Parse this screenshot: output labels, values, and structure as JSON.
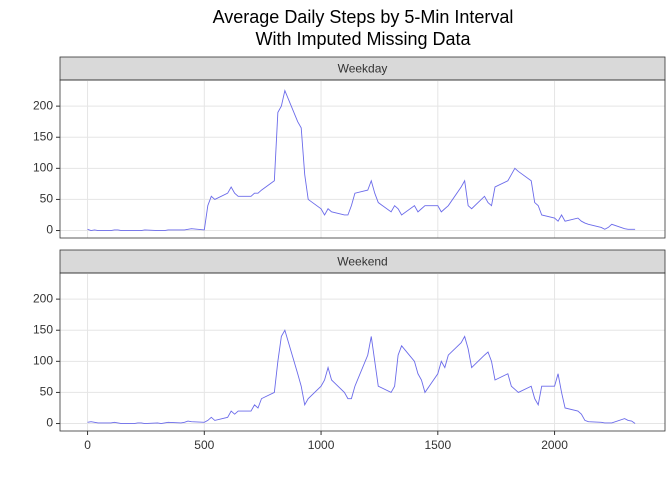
{
  "chart_data": {
    "type": "line",
    "layout": "facet",
    "title": [
      "Average Daily Steps by 5-Min Interval",
      "With Imputed Missing Data"
    ],
    "x": [
      0,
      15,
      30,
      45,
      100,
      115,
      130,
      145,
      200,
      215,
      230,
      245,
      300,
      315,
      330,
      345,
      400,
      415,
      430,
      445,
      500,
      515,
      530,
      545,
      600,
      615,
      630,
      645,
      700,
      715,
      730,
      745,
      800,
      815,
      830,
      845,
      900,
      915,
      930,
      945,
      1000,
      1015,
      1030,
      1045,
      1100,
      1115,
      1130,
      1145,
      1200,
      1215,
      1230,
      1245,
      1300,
      1315,
      1330,
      1345,
      1400,
      1415,
      1430,
      1445,
      1500,
      1515,
      1530,
      1545,
      1600,
      1615,
      1630,
      1645,
      1700,
      1715,
      1730,
      1745,
      1800,
      1815,
      1830,
      1845,
      1900,
      1915,
      1930,
      1945,
      2000,
      2015,
      2030,
      2045,
      2100,
      2115,
      2130,
      2145,
      2200,
      2215,
      2230,
      2245,
      2300,
      2315,
      2330,
      2345
    ],
    "series": [
      {
        "name": "Weekday",
        "color": "#6b6bea",
        "values": [
          2,
          0,
          1,
          0,
          0,
          1,
          1,
          0,
          0,
          0,
          0,
          1,
          0,
          0,
          0,
          1,
          1,
          1,
          2,
          3,
          1,
          40,
          55,
          50,
          60,
          70,
          60,
          55,
          55,
          60,
          60,
          65,
          80,
          190,
          200,
          225,
          175,
          165,
          90,
          50,
          35,
          25,
          35,
          30,
          25,
          25,
          40,
          60,
          65,
          80,
          60,
          45,
          30,
          40,
          35,
          25,
          40,
          30,
          35,
          40,
          40,
          30,
          35,
          40,
          70,
          80,
          40,
          35,
          55,
          45,
          40,
          70,
          80,
          90,
          100,
          95,
          80,
          45,
          40,
          25,
          20,
          15,
          25,
          15,
          20,
          15,
          12,
          10,
          5,
          2,
          5,
          10,
          3,
          2,
          2,
          2
        ]
      },
      {
        "name": "Weekend",
        "color": "#6b6bea",
        "values": [
          2,
          3,
          2,
          1,
          1,
          2,
          1,
          0,
          0,
          1,
          1,
          0,
          1,
          0,
          1,
          2,
          1,
          2,
          4,
          3,
          2,
          5,
          10,
          5,
          10,
          20,
          15,
          20,
          20,
          30,
          25,
          40,
          50,
          100,
          140,
          150,
          80,
          60,
          30,
          40,
          60,
          70,
          90,
          70,
          50,
          40,
          40,
          60,
          110,
          140,
          100,
          60,
          50,
          60,
          110,
          125,
          100,
          80,
          70,
          50,
          80,
          100,
          90,
          110,
          130,
          140,
          120,
          90,
          110,
          115,
          100,
          70,
          80,
          60,
          55,
          50,
          60,
          40,
          30,
          60,
          60,
          80,
          50,
          25,
          20,
          15,
          5,
          3,
          2,
          1,
          1,
          1,
          8,
          5,
          4,
          0
        ]
      }
    ],
    "xlim": [
      -118,
      2473
    ],
    "xticks": [
      0,
      500,
      1000,
      1500,
      2000
    ],
    "ylim": [
      -12,
      242
    ],
    "yticks": [
      0,
      50,
      100,
      150,
      200
    ],
    "grid": true
  }
}
